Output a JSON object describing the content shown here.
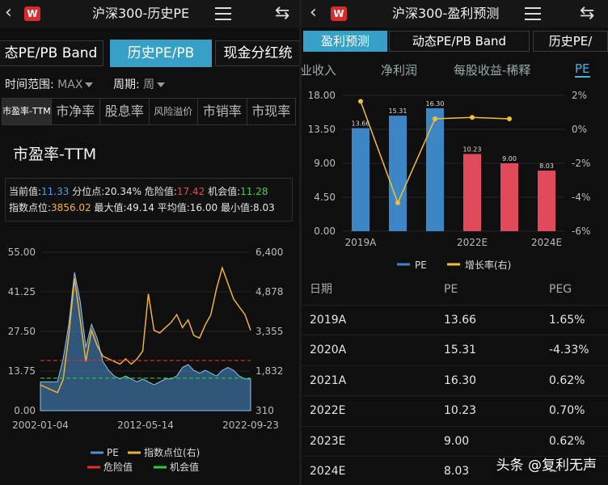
{
  "left": {
    "title": "沪深300-历史PE",
    "logo": "W",
    "tabs": [
      "态PE/PB Band",
      "历史PE/PB",
      "现金分红统"
    ],
    "filters": {
      "range_label": "时间范围:",
      "range_value": "MAX",
      "period_label": "周期:",
      "period_value": "周"
    },
    "metric_tabs": [
      "市盈率-TTM",
      "市净率",
      "股息率",
      "风险溢价",
      "市销率",
      "市现率"
    ],
    "section_title": "市盈率-TTM",
    "info": {
      "current_label": "当前值:",
      "current": "11.33",
      "pct_label": "分位点:",
      "pct": "20.34%",
      "danger_label": "危险值:",
      "danger": "17.42",
      "chance_label": "机会值:",
      "chance": "11.28",
      "index_label": "指数点位:",
      "index": "3856.02",
      "max_label": "最大值:",
      "max": "49.14",
      "avg_label": "平均值:",
      "avg": "16.00",
      "min_label": "最小值:",
      "min": "8.03"
    },
    "colors": {
      "pe": "#4a8fd0",
      "index": "#f0b232",
      "danger": "#e03030",
      "chance": "#2ecc40"
    }
  },
  "chart_data": [
    {
      "type": "area",
      "left_ticks": [
        "55.00",
        "41.25",
        "27.50",
        "13.75",
        "0.00"
      ],
      "right_ticks": [
        "6,400",
        "4,878",
        "3,355",
        "1,832",
        "310"
      ],
      "x_ticks": [
        "2002-01-04",
        "2012-05-14",
        "2022-09-23"
      ],
      "ylim_left": [
        0,
        55
      ],
      "ylim_right": [
        310,
        6400
      ],
      "danger": 17.42,
      "chance": 11.28,
      "legend": [
        "PE",
        "指数点位(右)",
        "危险值",
        "机会值"
      ],
      "series": [
        {
          "name": "PE",
          "axis": "left",
          "values": [
            10,
            10,
            10,
            10,
            18,
            30,
            48,
            38,
            22,
            30,
            25,
            17,
            14,
            12,
            11,
            12,
            11,
            10,
            11,
            10,
            9,
            10,
            11,
            11,
            12,
            15,
            16,
            14,
            13,
            14,
            13,
            12,
            14,
            15,
            14,
            12,
            11,
            11
          ]
        },
        {
          "name": "指数点位(右)",
          "axis": "right",
          "values": [
            1300,
            1200,
            1100,
            1000,
            1500,
            3200,
            5400,
            3800,
            2200,
            3400,
            2800,
            2400,
            2300,
            2200,
            2100,
            2300,
            2100,
            2300,
            2600,
            4800,
            3400,
            3300,
            3500,
            3700,
            4000,
            3500,
            3800,
            3200,
            3100,
            3600,
            4000,
            5000,
            5800,
            5200,
            4600,
            4300,
            4000,
            3400
          ]
        }
      ]
    },
    {
      "type": "bar",
      "categories": [
        "2019A",
        "2020A",
        "2021A",
        "2022E",
        "2023E",
        "2024E"
      ],
      "x_tick_labels": [
        "2019A",
        "2022E",
        "2024E"
      ],
      "series": [
        {
          "name": "PE",
          "values": [
            13.66,
            15.31,
            16.3,
            10.23,
            9.0,
            8.03
          ]
        },
        {
          "name": "增长率(右)",
          "values": [
            1.65,
            -4.33,
            0.62,
            0.7,
            0.62,
            null
          ]
        }
      ],
      "left_ticks": [
        "18.00",
        "13.50",
        "9.00",
        "4.50",
        "0.00"
      ],
      "right_ticks": [
        "2%",
        "0%",
        "-2%",
        "-4%",
        "-6%"
      ],
      "ylim": [
        0,
        18
      ],
      "ylim_right": [
        -6,
        2
      ],
      "colors": {
        "actual": "#3d86c6",
        "estimate": "#e04a5a",
        "line": "#f0c030"
      }
    }
  ],
  "right": {
    "title": "沪深300-盈利预测",
    "logo": "W",
    "tabs": [
      "盈利预测",
      "动态PE/PB Band",
      "历史PE/"
    ],
    "metric_tabs": [
      "业收入",
      "净利润",
      "每股收益-稀释",
      "PE"
    ],
    "table": {
      "headers": [
        "日期",
        "PE",
        "PEG"
      ],
      "rows": [
        [
          "2019A",
          "13.66",
          "1.65%"
        ],
        [
          "2020A",
          "15.31",
          "-4.33%"
        ],
        [
          "2021A",
          "16.30",
          "0.62%"
        ],
        [
          "2022E",
          "10.23",
          "0.70%"
        ],
        [
          "2023E",
          "9.00",
          "0.62%"
        ],
        [
          "2024E",
          "8.03",
          "--"
        ]
      ]
    },
    "watermark": "头条 @复利无声"
  }
}
